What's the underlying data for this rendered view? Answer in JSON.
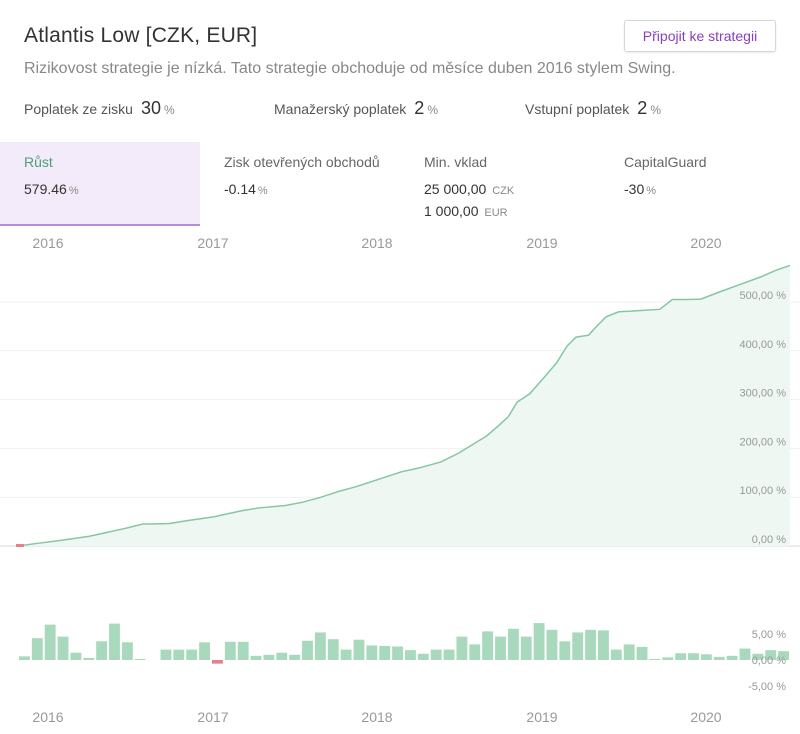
{
  "header": {
    "title": "Atlantis Low [CZK, EUR]",
    "subtitle": "Rizikovost strategie je nízká. Tato strategie obchoduje od měsíce duben 2016 stylem Swing.",
    "join_label": "Připojit ke strategii"
  },
  "fees": [
    {
      "label": "Poplatek ze zisku",
      "value": "30",
      "unit": "%"
    },
    {
      "label": "Manažerský poplatek",
      "value": "2",
      "unit": "%"
    },
    {
      "label": "Vstupní poplatek",
      "value": "2",
      "unit": "%"
    }
  ],
  "stats": {
    "growth": {
      "label": "Růst",
      "value": "579.46",
      "unit": "%"
    },
    "open_profit": {
      "label": "Zisk otevřených obchodů",
      "value": "-0.14",
      "unit": "%"
    },
    "min_deposit": {
      "label": "Min. vklad",
      "value1": "25 000,00",
      "unit1": "CZK",
      "value2": "1 000,00",
      "unit2": "EUR"
    },
    "capital_guard": {
      "label": "CapitalGuard",
      "value": "-30",
      "unit": "%"
    }
  },
  "colors": {
    "line": "#84c7a3",
    "area": "#eef7f1",
    "bar_positive": "#a8d9bc",
    "bar_negative": "#e8808a",
    "label": "#999999"
  },
  "chart_data": [
    {
      "type": "area",
      "title": "",
      "x_ticks": [
        "2016",
        "2017",
        "2018",
        "2019",
        "2020"
      ],
      "y_ticks": [
        "0,00 %",
        "100,00 %",
        "200,00 %",
        "300,00 %",
        "400,00 %",
        "500,00 %"
      ],
      "ylim": [
        0,
        575
      ],
      "xlim": [
        2016.25,
        2020.58
      ],
      "series": [
        {
          "points": [
            [
              2016.25,
              0
            ],
            [
              2016.35,
              5
            ],
            [
              2016.5,
              12
            ],
            [
              2016.65,
              20
            ],
            [
              2016.75,
              28
            ],
            [
              2016.85,
              36
            ],
            [
              2016.95,
              45
            ],
            [
              2017.0,
              45
            ],
            [
              2017.1,
              46
            ],
            [
              2017.2,
              52
            ],
            [
              2017.35,
              60
            ],
            [
              2017.5,
              72
            ],
            [
              2017.6,
              78
            ],
            [
              2017.75,
              83
            ],
            [
              2017.85,
              90
            ],
            [
              2017.95,
              100
            ],
            [
              2018.05,
              112
            ],
            [
              2018.15,
              122
            ],
            [
              2018.3,
              140
            ],
            [
              2018.4,
              152
            ],
            [
              2018.5,
              160
            ],
            [
              2018.62,
              172
            ],
            [
              2018.72,
              190
            ],
            [
              2018.8,
              208
            ],
            [
              2018.88,
              226
            ],
            [
              2018.95,
              248
            ],
            [
              2019.0,
              265
            ],
            [
              2019.05,
              295
            ],
            [
              2019.12,
              312
            ],
            [
              2019.2,
              345
            ],
            [
              2019.27,
              375
            ],
            [
              2019.33,
              410
            ],
            [
              2019.38,
              428
            ],
            [
              2019.45,
              432
            ],
            [
              2019.5,
              452
            ],
            [
              2019.55,
              470
            ],
            [
              2019.62,
              480
            ],
            [
              2019.72,
              482
            ],
            [
              2019.85,
              485
            ],
            [
              2019.92,
              505
            ],
            [
              2020.0,
              505
            ],
            [
              2020.08,
              506
            ],
            [
              2020.18,
              520
            ],
            [
              2020.3,
              536
            ],
            [
              2020.42,
              552
            ],
            [
              2020.5,
              565
            ],
            [
              2020.58,
              575
            ]
          ]
        }
      ]
    },
    {
      "type": "bar",
      "title": "",
      "x_ticks": [
        "2016",
        "2017",
        "2018",
        "2019",
        "2020"
      ],
      "y_ticks": [
        "5,00 %",
        "0,00 %",
        "-5,00 %"
      ],
      "ylim": [
        -5,
        10
      ],
      "xlim": [
        2016.25,
        2020.58
      ],
      "values": [
        0.7,
        4.2,
        6.8,
        4.5,
        1.4,
        0.4,
        3.6,
        7.0,
        3.4,
        0.2,
        0,
        2.0,
        2.0,
        2.0,
        3.4,
        -0.7,
        3.5,
        3.5,
        0.8,
        1.0,
        1.4,
        1.0,
        3.7,
        5.3,
        4.0,
        2.0,
        3.9,
        2.8,
        2.7,
        2.6,
        1.9,
        1.2,
        2.0,
        2.0,
        4.5,
        3.0,
        5.5,
        4.5,
        6.0,
        4.5,
        7.1,
        5.8,
        3.6,
        5.3,
        5.8,
        5.7,
        2.0,
        3.0,
        2.5,
        0.2,
        0.5,
        1.3,
        1.3,
        1.1,
        0.6,
        0.8,
        2.2,
        1.2,
        1.9,
        1.7
      ]
    }
  ]
}
